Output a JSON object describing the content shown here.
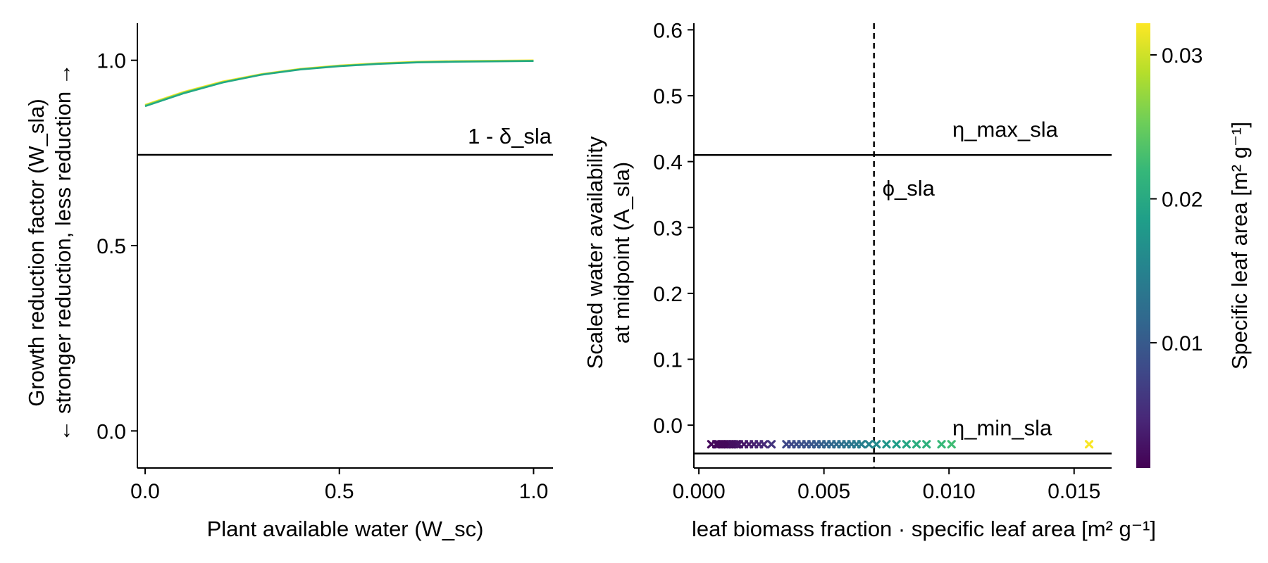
{
  "chart_data": [
    {
      "type": "line",
      "title": "",
      "xlabel": "Plant available water (W_sc)",
      "ylabel_line1": "Growth reduction factor (W_sla)",
      "ylabel_line2": "← stronger reduction, less reduction →",
      "xlim": [
        -0.02,
        1.05
      ],
      "ylim": [
        -0.1,
        1.1
      ],
      "xticks": [
        0.0,
        0.5,
        1.0
      ],
      "xtick_labels": [
        "0.0",
        "0.5",
        "1.0"
      ],
      "yticks": [
        0.0,
        0.5,
        1.0
      ],
      "ytick_labels": [
        "0.0",
        "0.5",
        "1.0"
      ],
      "grid": false,
      "hline": {
        "y": 0.745,
        "label": "1 - δ_sla"
      },
      "series": [
        {
          "color": "#fde725",
          "x": [
            0.0,
            0.1,
            0.2,
            0.3,
            0.4,
            0.5,
            0.6,
            0.7,
            0.8,
            0.9,
            1.0
          ],
          "y": [
            0.88,
            0.915,
            0.943,
            0.963,
            0.977,
            0.986,
            0.992,
            0.996,
            0.998,
            0.999,
            1.0
          ]
        },
        {
          "color": "#7ad151",
          "x": [
            0.0,
            0.1,
            0.2,
            0.3,
            0.4,
            0.5,
            0.6,
            0.7,
            0.8,
            0.9,
            1.0
          ],
          "y": [
            0.878,
            0.913,
            0.941,
            0.962,
            0.976,
            0.985,
            0.991,
            0.995,
            0.997,
            0.998,
            0.999
          ]
        },
        {
          "color": "#22a884",
          "x": [
            0.0,
            0.1,
            0.2,
            0.3,
            0.4,
            0.5,
            0.6,
            0.7,
            0.8,
            0.9,
            1.0
          ],
          "y": [
            0.876,
            0.911,
            0.94,
            0.961,
            0.975,
            0.984,
            0.99,
            0.994,
            0.996,
            0.997,
            0.998
          ]
        }
      ]
    },
    {
      "type": "scatter",
      "title": "",
      "xlabel": "leaf biomass fraction · specific leaf area [m² g⁻¹]",
      "ylabel_line1": "Scaled water availability",
      "ylabel_line2": "at midpoint (A_sla)",
      "xlim": [
        -0.0002,
        0.0165
      ],
      "ylim": [
        -0.065,
        0.61
      ],
      "xticks": [
        0.0,
        0.005,
        0.01,
        0.015
      ],
      "xtick_labels": [
        "0.000",
        "0.005",
        "0.010",
        "0.015"
      ],
      "yticks": [
        0.0,
        0.1,
        0.2,
        0.3,
        0.4,
        0.5,
        0.6
      ],
      "ytick_labels": [
        "0.0",
        "0.1",
        "0.2",
        "0.3",
        "0.4",
        "0.5",
        "0.6"
      ],
      "grid": false,
      "hlines": [
        {
          "y": 0.41,
          "label": "η_max_sla"
        },
        {
          "y": -0.043,
          "label": "η_min_sla"
        }
      ],
      "vline": {
        "x": 0.007,
        "label": "ϕ_sla",
        "style": "dashed"
      },
      "marker": "x",
      "points_y": -0.029,
      "points_x": [
        0.0005,
        0.0007,
        0.0008,
        0.0009,
        0.001,
        0.0011,
        0.0012,
        0.0013,
        0.0014,
        0.0015,
        0.0016,
        0.0018,
        0.002,
        0.0022,
        0.0024,
        0.0026,
        0.0029,
        0.0035,
        0.0037,
        0.0039,
        0.0041,
        0.0043,
        0.0045,
        0.0047,
        0.0049,
        0.0051,
        0.0053,
        0.0055,
        0.0057,
        0.0059,
        0.0061,
        0.0063,
        0.0065,
        0.0068,
        0.0071,
        0.0075,
        0.0079,
        0.0083,
        0.0087,
        0.0091,
        0.0097,
        0.0101,
        0.0156
      ],
      "points_c": [
        0.002,
        0.002,
        0.002,
        0.002,
        0.002,
        0.002,
        0.002,
        0.0025,
        0.0025,
        0.0025,
        0.003,
        0.003,
        0.0035,
        0.004,
        0.0045,
        0.005,
        0.006,
        0.008,
        0.008,
        0.0085,
        0.009,
        0.009,
        0.0095,
        0.01,
        0.0105,
        0.011,
        0.0115,
        0.012,
        0.0125,
        0.013,
        0.0135,
        0.014,
        0.0145,
        0.015,
        0.016,
        0.0175,
        0.0185,
        0.0195,
        0.0205,
        0.021,
        0.022,
        0.0225,
        0.032
      ]
    }
  ],
  "colorbar": {
    "label": "Specific leaf area [m² g⁻¹]",
    "range": [
      0.0013,
      0.0322
    ],
    "ticks": [
      0.01,
      0.02,
      0.03
    ],
    "tick_labels": [
      "0.01",
      "0.02",
      "0.03"
    ],
    "colormap": "viridis",
    "stops": [
      "#440154",
      "#482878",
      "#3e4a89",
      "#31688e",
      "#26828e",
      "#1f9e89",
      "#35b779",
      "#6ece58",
      "#b5de2b",
      "#fde725"
    ]
  }
}
